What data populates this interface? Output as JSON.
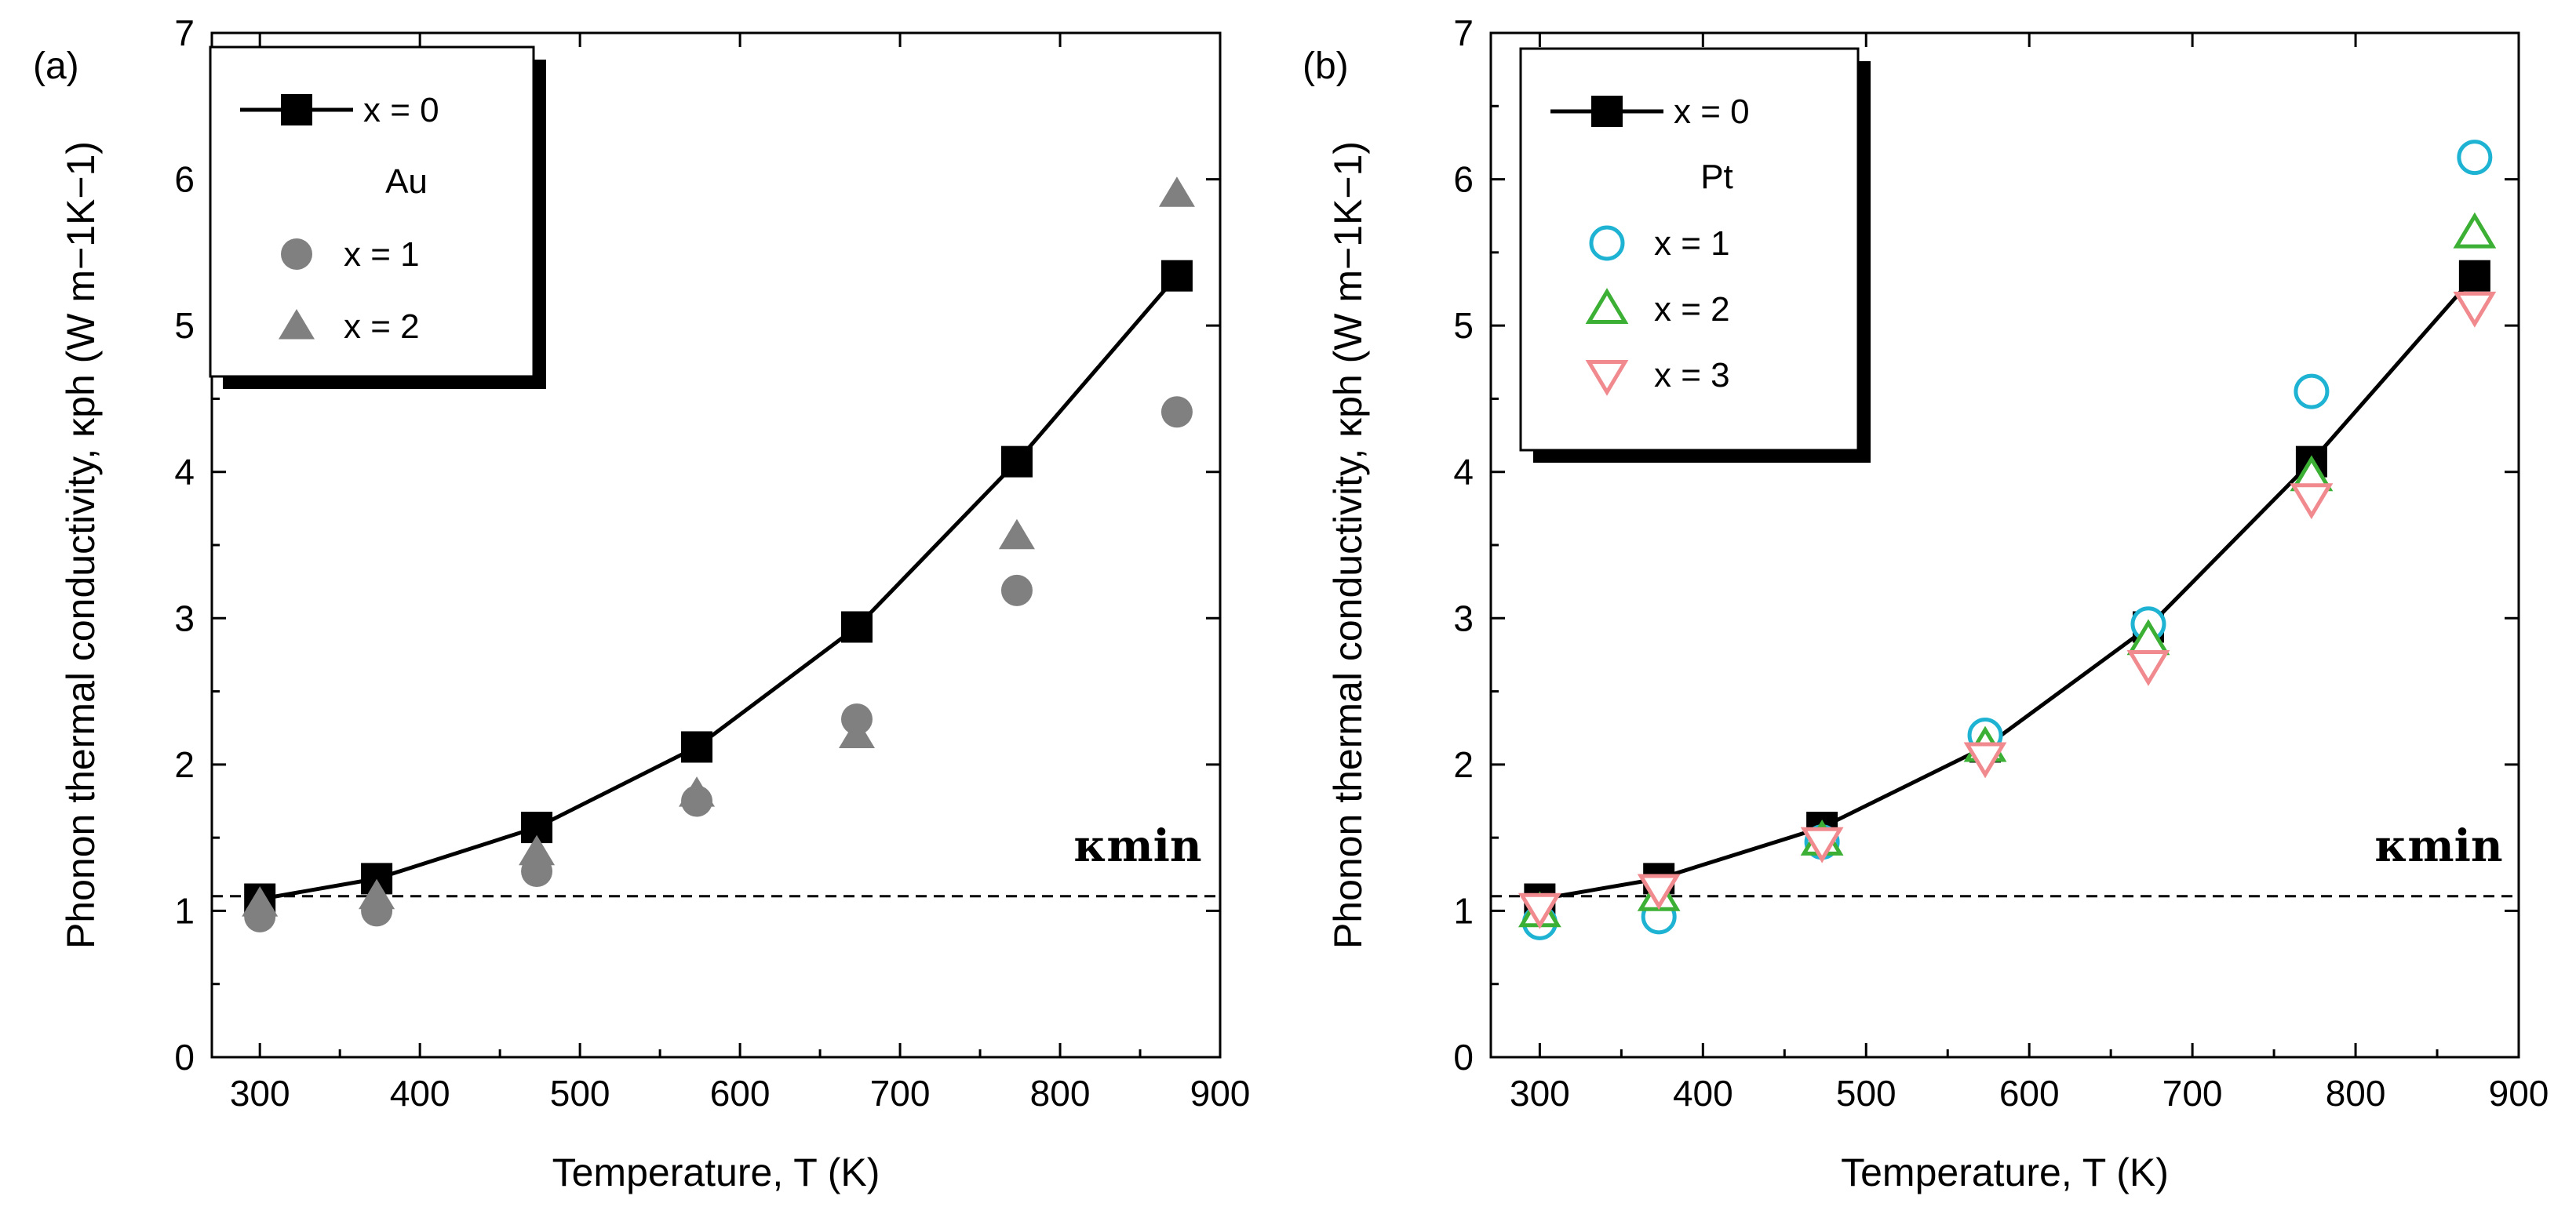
{
  "chart_data": [
    {
      "type": "scatter",
      "panel_label": "(a)",
      "xlabel": "Temperature, T (K)",
      "ylabel": "Phonon thermal conductivity, κph (W m−1K−1)",
      "xlim": [
        270,
        900
      ],
      "ylim": [
        0,
        7
      ],
      "x_ticks": [
        300,
        400,
        500,
        600,
        700,
        800,
        900
      ],
      "y_ticks": [
        0,
        1,
        2,
        3,
        4,
        5,
        6,
        7
      ],
      "reference_line": {
        "label": "κmin",
        "value": 1.1,
        "style": "dashed"
      },
      "legend_group_label": "Au",
      "series": [
        {
          "name": "x = 0",
          "marker": "square",
          "filled": true,
          "color": "#000000",
          "line": true,
          "x": [
            300,
            373,
            473,
            573,
            673,
            773,
            873
          ],
          "y": [
            1.08,
            1.22,
            1.57,
            2.12,
            2.94,
            4.07,
            5.34
          ]
        },
        {
          "name": "x = 1",
          "marker": "circle",
          "filled": true,
          "color": "#808080",
          "line": false,
          "x": [
            300,
            373,
            473,
            573,
            673,
            773,
            873
          ],
          "y": [
            0.96,
            1.0,
            1.27,
            1.75,
            2.31,
            3.19,
            4.41
          ]
        },
        {
          "name": "x = 2",
          "marker": "triangle-up",
          "filled": true,
          "color": "#808080",
          "line": false,
          "x": [
            300,
            373,
            473,
            573,
            673,
            773,
            873
          ],
          "y": [
            1.05,
            1.1,
            1.4,
            1.8,
            2.2,
            3.56,
            5.9
          ]
        }
      ]
    },
    {
      "type": "scatter",
      "panel_label": "(b)",
      "xlabel": "Temperature, T (K)",
      "ylabel": "Phonon thermal conductivity, κph (W m−1K−1)",
      "xlim": [
        270,
        900
      ],
      "ylim": [
        0,
        7
      ],
      "x_ticks": [
        300,
        400,
        500,
        600,
        700,
        800,
        900
      ],
      "y_ticks": [
        0,
        1,
        2,
        3,
        4,
        5,
        6,
        7
      ],
      "reference_line": {
        "label": "κmin",
        "value": 1.1,
        "style": "dashed"
      },
      "legend_group_label": "Pt",
      "series": [
        {
          "name": "x = 0",
          "marker": "square",
          "filled": true,
          "color": "#000000",
          "line": true,
          "x": [
            300,
            373,
            473,
            573,
            673,
            773,
            873
          ],
          "y": [
            1.08,
            1.22,
            1.57,
            2.12,
            2.94,
            4.07,
            5.34
          ]
        },
        {
          "name": "x = 1",
          "marker": "circle",
          "filled": false,
          "color": "#1fb3d3",
          "line": false,
          "x": [
            300,
            373,
            473,
            573,
            673,
            773,
            873
          ],
          "y": [
            0.92,
            0.96,
            1.47,
            2.2,
            2.96,
            4.55,
            6.15
          ]
        },
        {
          "name": "x = 2",
          "marker": "triangle-up",
          "filled": false,
          "color": "#3cb034",
          "line": false,
          "x": [
            300,
            373,
            473,
            573,
            673,
            773,
            873
          ],
          "y": [
            0.99,
            1.1,
            1.48,
            2.12,
            2.85,
            3.97,
            5.63
          ]
        },
        {
          "name": "x = 3",
          "marker": "triangle-down",
          "filled": false,
          "color": "#f08a8e",
          "line": false,
          "x": [
            300,
            373,
            473,
            573,
            673,
            773,
            873
          ],
          "y": [
            1.02,
            1.15,
            1.47,
            2.05,
            2.68,
            3.82,
            5.13
          ]
        }
      ]
    }
  ]
}
